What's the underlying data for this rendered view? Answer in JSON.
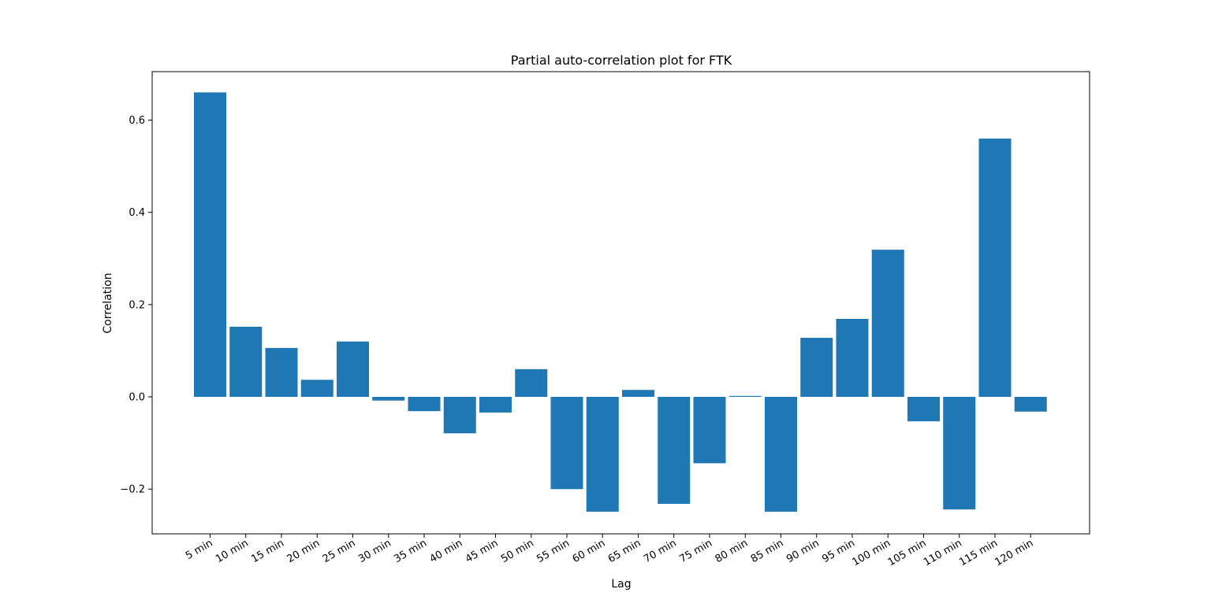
{
  "chart_data": {
    "type": "bar",
    "title": "Partial auto-correlation plot for FTK",
    "xlabel": "Lag",
    "ylabel": "Correlation",
    "categories": [
      "5 min",
      "10 min",
      "15 min",
      "20 min",
      "25 min",
      "30 min",
      "35 min",
      "40 min",
      "45 min",
      "50 min",
      "55 min",
      "60 min",
      "65 min",
      "70 min",
      "75 min",
      "80 min",
      "85 min",
      "90 min",
      "95 min",
      "100 min",
      "105 min",
      "110 min",
      "115 min",
      "120 min"
    ],
    "values": [
      0.66,
      0.152,
      0.106,
      0.037,
      0.12,
      -0.008,
      -0.031,
      -0.079,
      -0.034,
      0.06,
      -0.2,
      -0.249,
      0.015,
      -0.232,
      -0.144,
      0.002,
      -0.249,
      0.128,
      0.169,
      0.319,
      -0.053,
      -0.244,
      0.56,
      -0.032
    ],
    "ylim": [
      -0.297,
      0.705
    ],
    "yticks": [
      -0.2,
      0.0,
      0.2,
      0.4,
      0.6
    ],
    "ytick_labels": [
      "−0.2",
      "0.0",
      "0.2",
      "0.4",
      "0.6"
    ],
    "grid": false,
    "bar_color": "#1f77b4"
  }
}
